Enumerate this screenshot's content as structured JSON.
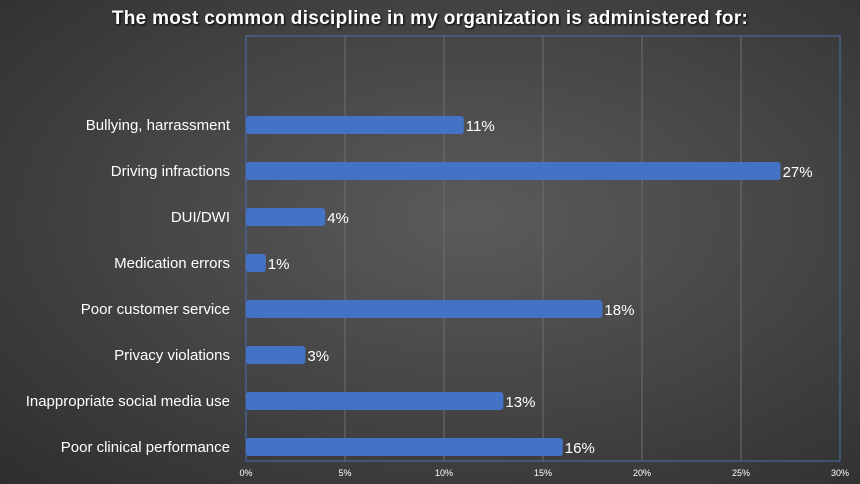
{
  "chart_data": {
    "type": "bar",
    "orientation": "horizontal",
    "title": "The most common discipline in my organization is administered for:",
    "categories": [
      "Bullying, harrassment",
      "Driving infractions",
      "DUI/DWI",
      "Medication errors",
      "Poor customer service",
      "Privacy violations",
      "Inappropriate social media use",
      "Poor clinical performance"
    ],
    "values": [
      11,
      27,
      4,
      1,
      18,
      3,
      13,
      16
    ],
    "value_labels": [
      "11%",
      "27%",
      "4%",
      "1%",
      "18%",
      "3%",
      "13%",
      "16%"
    ],
    "xlim": [
      0,
      30
    ],
    "x_ticks": [
      "0%",
      "5%",
      "10%",
      "15%",
      "20%",
      "25%",
      "30%"
    ],
    "xlabel": "",
    "ylabel": "",
    "grid": true,
    "legend": "none",
    "colors": {
      "bar": "#4472c4",
      "background": "#3f3f3f",
      "text": "#ffffff"
    }
  }
}
